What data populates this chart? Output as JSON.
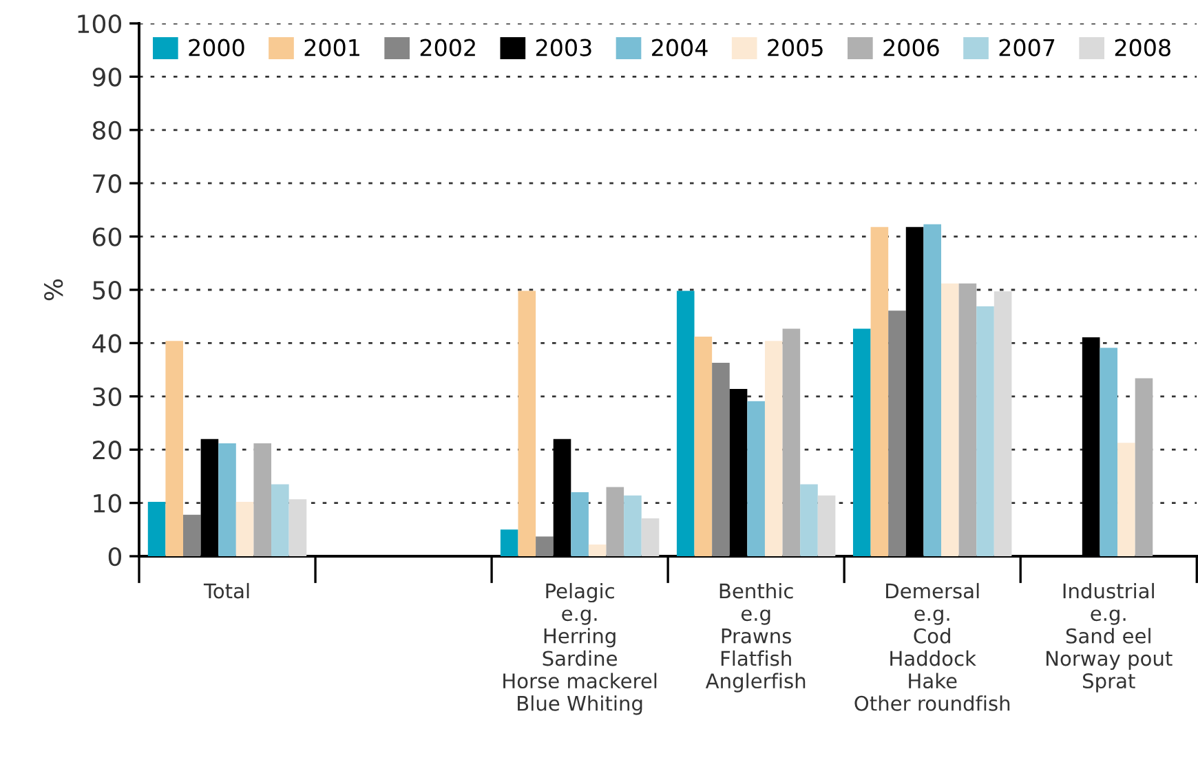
{
  "chart_data": {
    "type": "bar",
    "ylabel": "%",
    "categories": [
      "Total",
      null,
      "Pelagic\ne.g.\nHerring\nSardine\nHorse mackerel\nBlue Whiting",
      "Benthic\ne.g\nPrawns\nFlatfish\nAnglerfish",
      "Demersal\ne.g.\nCod\nHaddock\nHake\nOther roundfish",
      "Industrial\ne.g.\nSand eel\nNorway pout\nSprat"
    ],
    "series": [
      {
        "name": "2000",
        "color": "#00a3c0",
        "values": [
          10.2,
          null,
          5.0,
          49.8,
          42.7,
          null
        ]
      },
      {
        "name": "2001",
        "color": "#f8ca93",
        "values": [
          40.4,
          null,
          49.8,
          41.2,
          61.8,
          null
        ]
      },
      {
        "name": "2002",
        "color": "#868686",
        "values": [
          7.8,
          null,
          3.7,
          36.3,
          46.1,
          null
        ]
      },
      {
        "name": "2003",
        "color": "#000000",
        "values": [
          22.0,
          null,
          22.0,
          31.4,
          61.8,
          41.1
        ]
      },
      {
        "name": "2004",
        "color": "#79bed5",
        "values": [
          21.2,
          null,
          12.0,
          29.1,
          62.3,
          39.1
        ]
      },
      {
        "name": "2005",
        "color": "#fce9d3",
        "values": [
          10.2,
          null,
          2.2,
          40.4,
          51.2,
          21.3
        ]
      },
      {
        "name": "2006",
        "color": "#b0b0b0",
        "values": [
          21.2,
          null,
          13.0,
          42.7,
          51.2,
          33.4
        ]
      },
      {
        "name": "2007",
        "color": "#a9d4e1",
        "values": [
          13.5,
          null,
          11.4,
          13.5,
          46.9,
          null
        ]
      },
      {
        "name": "2008",
        "color": "#dadada",
        "values": [
          10.7,
          null,
          7.1,
          11.4,
          49.7,
          null
        ]
      }
    ],
    "ylim": [
      0,
      100
    ],
    "yticks": [
      0,
      10,
      20,
      30,
      40,
      50,
      60,
      70,
      80,
      90,
      100
    ],
    "grid": "y",
    "legend": "top left"
  }
}
